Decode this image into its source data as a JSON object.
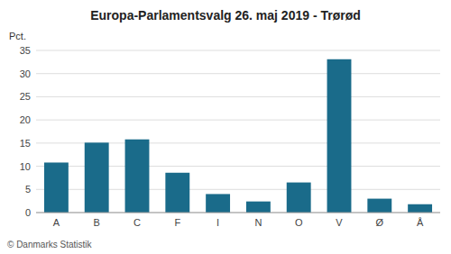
{
  "chart_data": {
    "type": "bar",
    "title": "Europa-Parlamentsvalg 26. maj 2019 - Trørød",
    "ylabel": "Pct.",
    "annotations": [
      "© Danmarks Statistik"
    ],
    "categories": [
      "A",
      "B",
      "C",
      "F",
      "I",
      "N",
      "O",
      "V",
      "Ø",
      "Å"
    ],
    "values": [
      10.8,
      15.1,
      15.8,
      8.6,
      4.0,
      2.4,
      6.5,
      33.1,
      3.0,
      1.8
    ],
    "color": "#1a6b8a",
    "ylim": [
      0,
      35
    ],
    "yticks": [
      0,
      5,
      10,
      15,
      20,
      25,
      30,
      35
    ],
    "grid": true
  }
}
